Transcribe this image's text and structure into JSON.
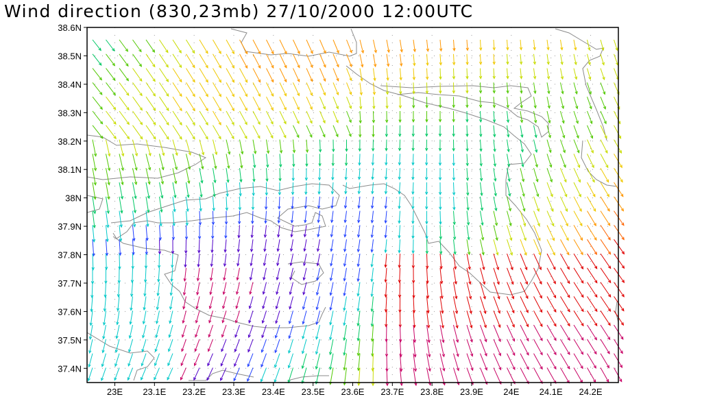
{
  "title": "Wind direction (830,23mb) 27/10/2000 12:00UTC",
  "map": {
    "lat_labels": [
      "38.6N",
      "38.5N",
      "38.4N",
      "38.3N",
      "38.2N",
      "38.1N",
      "38N",
      "37.9N",
      "37.8N",
      "37.7N",
      "37.6N",
      "37.5N",
      "37.4N"
    ],
    "lon_labels": [
      "23E",
      "23.1E",
      "23.2E",
      "23.3E",
      "23.4E",
      "23.5E",
      "23.6E",
      "23.7E",
      "23.8E",
      "23.9E",
      "24E",
      "24.1E",
      "24.2E"
    ],
    "lat_range": [
      37.35,
      38.6
    ],
    "lon_range": [
      22.93,
      24.27
    ],
    "colors": {
      "frame": "#000000",
      "coastline": "#8a8a8a",
      "grid": "#9a9a9a",
      "wind_scale": [
        "#5000c8",
        "#2040ff",
        "#00c8c8",
        "#00c864",
        "#50c800",
        "#c8dc00",
        "#f0c800",
        "#ff9600",
        "#ff6400",
        "#e00000",
        "#c80064"
      ]
    }
  }
}
